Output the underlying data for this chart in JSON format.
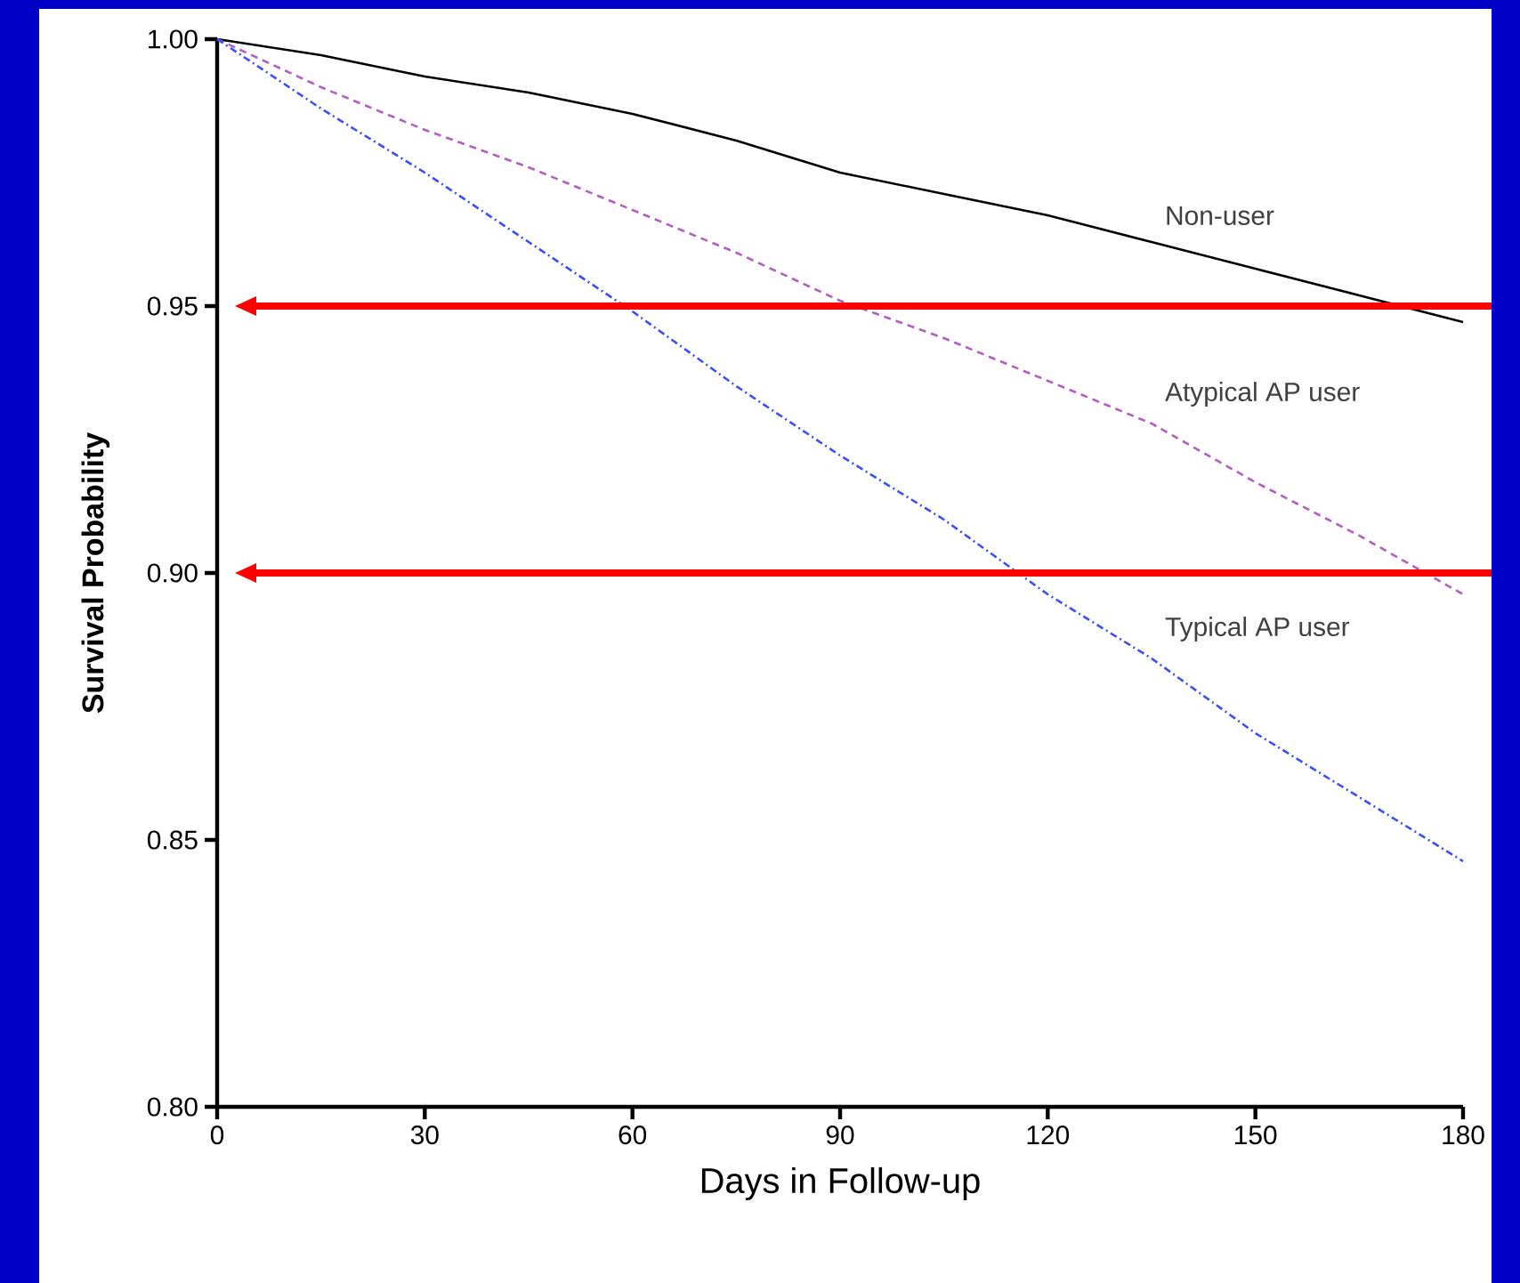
{
  "chart_data": {
    "type": "line",
    "xlabel": "Days in Follow-up",
    "ylabel": "Survival Probability",
    "x": [
      0,
      15,
      30,
      45,
      60,
      75,
      90,
      105,
      120,
      135,
      150,
      165,
      180
    ],
    "series": [
      {
        "name": "Non-user",
        "color": "#000000",
        "line_style": "solid",
        "values": [
          1.0,
          0.997,
          0.993,
          0.99,
          0.986,
          0.981,
          0.975,
          0.971,
          0.967,
          0.962,
          0.957,
          0.952,
          0.947
        ]
      },
      {
        "name": "Atypical AP user",
        "color": "#b060c0",
        "line_style": "dashed",
        "values": [
          1.0,
          0.991,
          0.983,
          0.976,
          0.968,
          0.96,
          0.951,
          0.944,
          0.936,
          0.928,
          0.917,
          0.907,
          0.896
        ]
      },
      {
        "name": "Typical AP user",
        "color": "#3a50f0",
        "line_style": "dotted",
        "values": [
          1.0,
          0.987,
          0.975,
          0.962,
          0.949,
          0.935,
          0.922,
          0.91,
          0.896,
          0.884,
          0.87,
          0.858,
          0.846
        ]
      }
    ],
    "xlim": [
      0,
      180
    ],
    "ylim": [
      0.8,
      1.0
    ],
    "xticks": [
      0,
      30,
      60,
      90,
      120,
      150,
      180
    ],
    "yticks": [
      {
        "value": 0.8,
        "label": "0.80"
      },
      {
        "value": 0.85,
        "label": "0.85"
      },
      {
        "value": 0.9,
        "label": "0.90"
      },
      {
        "value": 0.95,
        "label": "0.95"
      },
      {
        "value": 1.0,
        "label": "1.00"
      }
    ],
    "ref_lines": [
      {
        "axis": "y",
        "value": 0.95,
        "color": "#ff0000"
      },
      {
        "axis": "y",
        "value": 0.9,
        "color": "#ff0000"
      }
    ],
    "grid": false,
    "legend": false,
    "marker": "none"
  }
}
